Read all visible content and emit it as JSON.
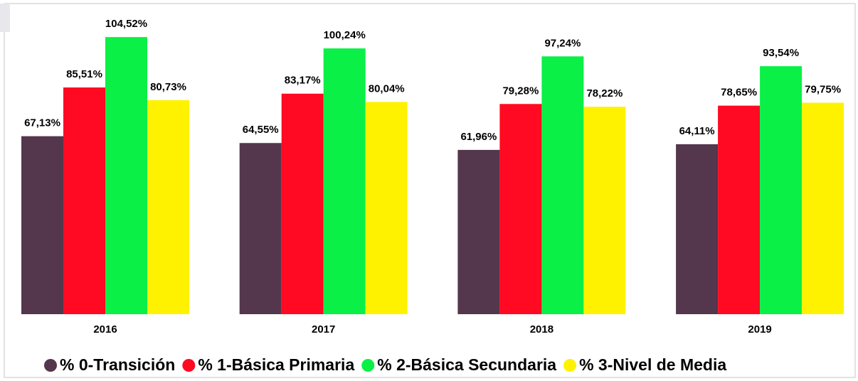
{
  "chart_data": {
    "type": "bar",
    "categories": [
      "2016",
      "2017",
      "2018",
      "2019"
    ],
    "series": [
      {
        "name": "% 0-Transición",
        "color": "#54364d",
        "values": [
          67.13,
          64.55,
          61.96,
          64.11
        ],
        "value_labels": [
          "67,13%",
          "64,55%",
          "61,96%",
          "64,11%"
        ]
      },
      {
        "name": "% 1-Básica Primaria",
        "color": "#ff0a22",
        "values": [
          85.51,
          83.17,
          79.28,
          78.65
        ],
        "value_labels": [
          "85,51%",
          "83,17%",
          "79,28%",
          "78,65%"
        ]
      },
      {
        "name": "% 2-Básica Secundaria",
        "color": "#0af046",
        "values": [
          104.52,
          100.24,
          97.24,
          93.54
        ],
        "value_labels": [
          "104,52%",
          "100,24%",
          "97,24%",
          "93,54%"
        ]
      },
      {
        "name": "% 3-Nivel de Media",
        "color": "#fff200",
        "values": [
          80.73,
          80.04,
          78.22,
          79.75
        ],
        "value_labels": [
          "80,73%",
          "80,04%",
          "78,22%",
          "79,75%"
        ]
      }
    ]
  }
}
